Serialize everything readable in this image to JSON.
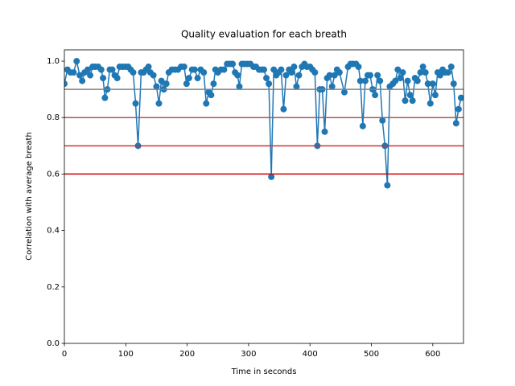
{
  "chart_data": {
    "type": "line",
    "title": "Quality evaluation for each breath",
    "x_label": "Time in seconds",
    "y_label": "Correlation with average breath",
    "xlim": [
      0,
      650
    ],
    "ylim": [
      0,
      1.04
    ],
    "xticks": [
      0,
      100,
      200,
      300,
      400,
      500,
      600
    ],
    "yticks": [
      {
        "value": 0,
        "label": "0.0"
      },
      {
        "value": 0.2,
        "label": "0.2"
      },
      {
        "value": 0.4,
        "label": "0.4"
      },
      {
        "value": 0.6,
        "label": "0.6"
      },
      {
        "value": 0.8,
        "label": "0.8"
      },
      {
        "value": 1.0,
        "label": "1.0"
      }
    ],
    "hlines": [
      {
        "value": 0.9,
        "color": "#808080"
      },
      {
        "value": 0.8,
        "color": "#a05a5a"
      },
      {
        "value": 0.7,
        "color": "#d03030"
      },
      {
        "value": 0.6,
        "color": "#d00000"
      }
    ],
    "series": [
      {
        "color": "#1f77b4",
        "x": [
          0,
          5,
          10,
          15,
          20,
          25,
          29,
          33,
          38,
          42,
          46,
          50,
          55,
          60,
          63,
          66,
          70,
          74,
          78,
          82,
          86,
          90,
          95,
          100,
          104,
          108,
          112,
          116,
          120,
          125,
          129,
          133,
          137,
          140,
          145,
          150,
          154,
          158,
          162,
          166,
          170,
          175,
          180,
          185,
          190,
          195,
          199,
          203,
          208,
          212,
          217,
          222,
          227,
          231,
          235,
          239,
          243,
          246,
          250,
          255,
          260,
          265,
          270,
          274,
          278,
          282,
          285,
          289,
          293,
          298,
          303,
          308,
          312,
          317,
          321,
          325,
          329,
          333,
          337,
          341,
          345,
          349,
          353,
          357,
          361,
          366,
          370,
          374,
          378,
          382,
          387,
          391,
          395,
          400,
          404,
          408,
          412,
          416,
          420,
          424,
          428,
          432,
          436,
          440,
          444,
          448,
          456,
          462,
          466,
          470,
          475,
          479,
          482,
          486,
          490,
          494,
          498,
          502,
          506,
          510,
          514,
          518,
          522,
          526,
          530,
          535,
          539,
          543,
          547,
          551,
          555,
          559,
          563,
          567,
          571,
          575,
          580,
          584,
          588,
          592,
          596,
          600,
          604,
          608,
          612,
          616,
          620,
          625,
          630,
          634,
          638,
          642,
          646
        ],
        "values": [
          0.92,
          0.97,
          0.96,
          0.96,
          1.0,
          0.95,
          0.93,
          0.96,
          0.97,
          0.95,
          0.98,
          0.98,
          0.98,
          0.97,
          0.94,
          0.87,
          0.9,
          0.97,
          0.97,
          0.95,
          0.94,
          0.98,
          0.98,
          0.98,
          0.98,
          0.97,
          0.96,
          0.85,
          0.7,
          0.96,
          0.96,
          0.97,
          0.98,
          0.96,
          0.95,
          0.91,
          0.85,
          0.93,
          0.9,
          0.92,
          0.96,
          0.97,
          0.97,
          0.97,
          0.98,
          0.98,
          0.92,
          0.94,
          0.97,
          0.97,
          0.94,
          0.97,
          0.96,
          0.85,
          0.89,
          0.88,
          0.92,
          0.97,
          0.96,
          0.97,
          0.97,
          0.99,
          0.99,
          0.99,
          0.96,
          0.95,
          0.91,
          0.99,
          0.99,
          0.99,
          0.99,
          0.98,
          0.98,
          0.97,
          0.97,
          0.97,
          0.94,
          0.92,
          0.59,
          0.97,
          0.95,
          0.96,
          0.97,
          0.83,
          0.95,
          0.97,
          0.96,
          0.98,
          0.91,
          0.95,
          0.98,
          0.99,
          0.98,
          0.98,
          0.97,
          0.96,
          0.7,
          0.9,
          0.9,
          0.75,
          0.94,
          0.95,
          0.91,
          0.95,
          0.97,
          0.96,
          0.89,
          0.98,
          0.99,
          0.99,
          0.99,
          0.98,
          0.93,
          0.77,
          0.93,
          0.95,
          0.95,
          0.9,
          0.88,
          0.95,
          0.93,
          0.79,
          0.7,
          0.56,
          0.91,
          0.92,
          0.93,
          0.97,
          0.94,
          0.96,
          0.86,
          0.93,
          0.88,
          0.86,
          0.94,
          0.93,
          0.96,
          0.98,
          0.96,
          0.92,
          0.85,
          0.92,
          0.88,
          0.96,
          0.95,
          0.97,
          0.96,
          0.96,
          0.98,
          0.92,
          0.78,
          0.83,
          0.87
        ]
      }
    ]
  }
}
